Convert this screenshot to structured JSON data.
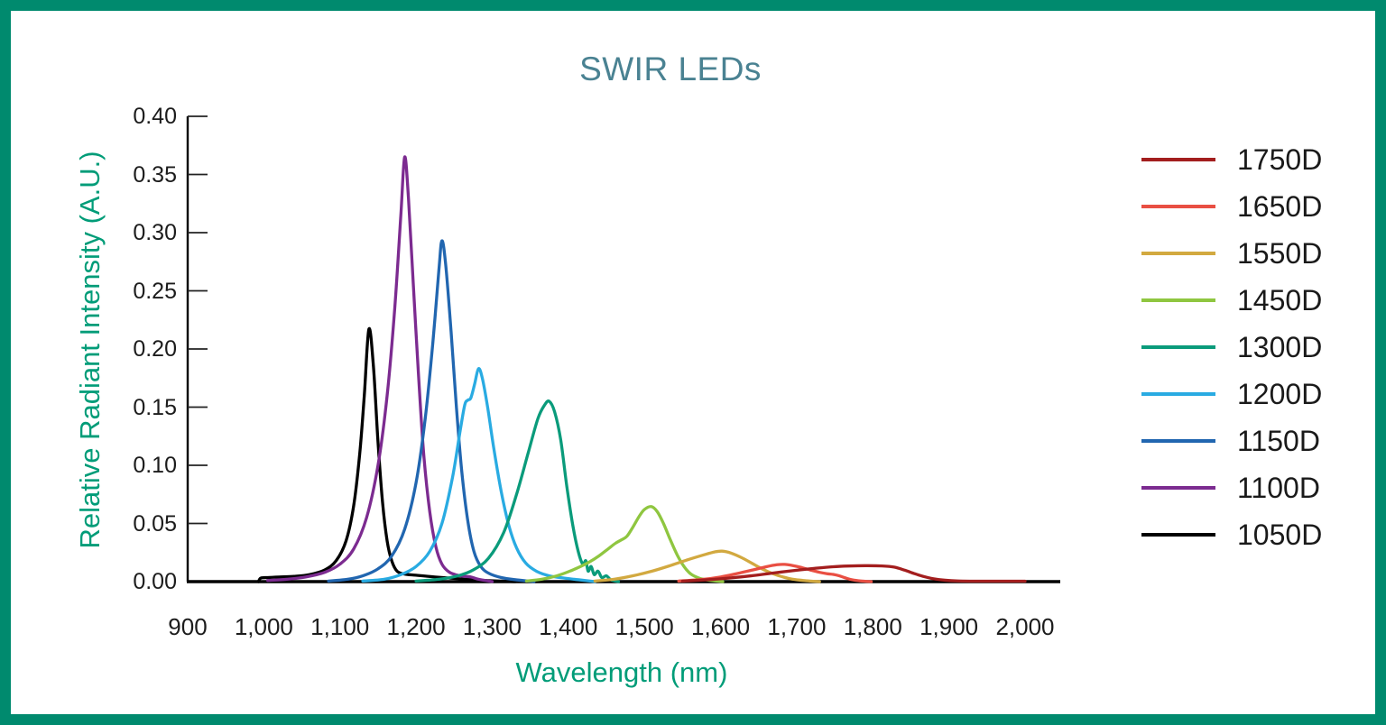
{
  "title": "SWIR LEDs",
  "palette": {
    "frame_border": "#008A6E",
    "title_color": "#4A8292",
    "axis_label_color": "#009C78",
    "axis_line_color": "#000000",
    "tick_label_color": "#1C1C1C"
  },
  "x_axis": {
    "label": "Wavelength (nm)",
    "min": 900,
    "max": 2000,
    "tick_step": 100,
    "tick_labels": [
      "900",
      "1,000",
      "1,100",
      "1,200",
      "1,300",
      "1,400",
      "1,500",
      "1,600",
      "1,700",
      "1,800",
      "1,900",
      "2,000"
    ]
  },
  "y_axis": {
    "label": "Relative Radiant Intensity (A.U.)",
    "min": 0,
    "max": 0.4,
    "tick_step": 0.05,
    "tick_labels": [
      "0.00",
      "0.05",
      "0.10",
      "0.15",
      "0.20",
      "0.25",
      "0.30",
      "0.35",
      "0.40"
    ]
  },
  "chart_data": {
    "type": "line",
    "title": "SWIR LEDs",
    "xlabel": "Wavelength (nm)",
    "ylabel": "Relative Radiant Intensity (A.U.)",
    "xlim": [
      900,
      2000
    ],
    "ylim": [
      0,
      0.4
    ],
    "grid": false,
    "legend_position": "right",
    "series": [
      {
        "name": "1750D",
        "color": "#A31E1E",
        "peak_nm": 1790,
        "peak_value": 0.0137,
        "points": [
          [
            1550,
            0.0004
          ],
          [
            1580,
            0.0015
          ],
          [
            1610,
            0.003
          ],
          [
            1640,
            0.005
          ],
          [
            1670,
            0.0075
          ],
          [
            1700,
            0.0098
          ],
          [
            1725,
            0.0115
          ],
          [
            1748,
            0.0128
          ],
          [
            1768,
            0.0134
          ],
          [
            1790,
            0.0137
          ],
          [
            1812,
            0.0135
          ],
          [
            1828,
            0.0125
          ],
          [
            1842,
            0.0098
          ],
          [
            1855,
            0.0068
          ],
          [
            1868,
            0.0042
          ],
          [
            1880,
            0.0024
          ],
          [
            1895,
            0.0012
          ],
          [
            1912,
            0.0006
          ],
          [
            1940,
            0.0004
          ],
          [
            2000,
            0.0004
          ]
        ]
      },
      {
        "name": "1650D",
        "color": "#E94F43",
        "peak_nm": 1684,
        "peak_value": 0.0148,
        "points": [
          [
            1545,
            0.0005
          ],
          [
            1575,
            0.0018
          ],
          [
            1600,
            0.004
          ],
          [
            1622,
            0.007
          ],
          [
            1642,
            0.01
          ],
          [
            1660,
            0.0128
          ],
          [
            1674,
            0.0145
          ],
          [
            1684,
            0.0148
          ],
          [
            1695,
            0.0138
          ],
          [
            1706,
            0.0122
          ],
          [
            1718,
            0.01
          ],
          [
            1730,
            0.008
          ],
          [
            1740,
            0.0068
          ],
          [
            1748,
            0.0062
          ],
          [
            1756,
            0.005
          ],
          [
            1764,
            0.0032
          ],
          [
            1773,
            0.0016
          ],
          [
            1784,
            0.0006
          ],
          [
            1798,
            0
          ]
        ]
      },
      {
        "name": "1550D",
        "color": "#D2A940",
        "peak_nm": 1602,
        "peak_value": 0.0262,
        "points": [
          [
            1435,
            0.0005
          ],
          [
            1460,
            0.002
          ],
          [
            1485,
            0.005
          ],
          [
            1510,
            0.009
          ],
          [
            1535,
            0.014
          ],
          [
            1558,
            0.019
          ],
          [
            1578,
            0.023
          ],
          [
            1592,
            0.0255
          ],
          [
            1602,
            0.0262
          ],
          [
            1614,
            0.0245
          ],
          [
            1628,
            0.0205
          ],
          [
            1642,
            0.0155
          ],
          [
            1656,
            0.0105
          ],
          [
            1670,
            0.0065
          ],
          [
            1682,
            0.004
          ],
          [
            1695,
            0.002
          ],
          [
            1712,
            0.0008
          ],
          [
            1730,
            0
          ]
        ]
      },
      {
        "name": "1450D",
        "color": "#8FC640",
        "peak_nm": 1509,
        "peak_value": 0.0645,
        "points": [
          [
            1345,
            0.0005
          ],
          [
            1365,
            0.002
          ],
          [
            1385,
            0.005
          ],
          [
            1402,
            0.009
          ],
          [
            1416,
            0.013
          ],
          [
            1428,
            0.017
          ],
          [
            1440,
            0.022
          ],
          [
            1452,
            0.028
          ],
          [
            1462,
            0.033
          ],
          [
            1470,
            0.036
          ],
          [
            1477,
            0.039
          ],
          [
            1485,
            0.047
          ],
          [
            1493,
            0.056
          ],
          [
            1500,
            0.062
          ],
          [
            1509,
            0.0645
          ],
          [
            1517,
            0.06
          ],
          [
            1525,
            0.05
          ],
          [
            1534,
            0.036
          ],
          [
            1543,
            0.023
          ],
          [
            1552,
            0.013
          ],
          [
            1561,
            0.0065
          ],
          [
            1572,
            0.003
          ],
          [
            1585,
            0.0012
          ],
          [
            1603,
            0
          ]
        ]
      },
      {
        "name": "1300D",
        "color": "#0A9B7B",
        "peak_nm": 1375,
        "peak_value": 0.155,
        "points": [
          [
            1200,
            0.0005
          ],
          [
            1230,
            0.002
          ],
          [
            1255,
            0.005
          ],
          [
            1275,
            0.01
          ],
          [
            1295,
            0.02
          ],
          [
            1315,
            0.042
          ],
          [
            1332,
            0.075
          ],
          [
            1347,
            0.11
          ],
          [
            1360,
            0.14
          ],
          [
            1369,
            0.152
          ],
          [
            1375,
            0.155
          ],
          [
            1382,
            0.146
          ],
          [
            1390,
            0.122
          ],
          [
            1398,
            0.082
          ],
          [
            1406,
            0.048
          ],
          [
            1413,
            0.026
          ],
          [
            1419,
            0.015
          ],
          [
            1423,
            0.018
          ],
          [
            1426,
            0.009
          ],
          [
            1430,
            0.013
          ],
          [
            1434,
            0.006
          ],
          [
            1439,
            0.009
          ],
          [
            1444,
            0.0035
          ],
          [
            1450,
            0.005
          ],
          [
            1456,
            0.0015
          ],
          [
            1466,
            0
          ]
        ]
      },
      {
        "name": "1200D",
        "color": "#29ABE2",
        "peak_nm": 1282,
        "peak_value": 0.183,
        "points": [
          [
            1130,
            0.0005
          ],
          [
            1158,
            0.002
          ],
          [
            1180,
            0.006
          ],
          [
            1200,
            0.013
          ],
          [
            1218,
            0.026
          ],
          [
            1234,
            0.05
          ],
          [
            1248,
            0.09
          ],
          [
            1258,
            0.13
          ],
          [
            1264,
            0.152
          ],
          [
            1268,
            0.156
          ],
          [
            1272,
            0.158
          ],
          [
            1277,
            0.17
          ],
          [
            1282,
            0.183
          ],
          [
            1287,
            0.175
          ],
          [
            1294,
            0.15
          ],
          [
            1302,
            0.115
          ],
          [
            1312,
            0.077
          ],
          [
            1322,
            0.048
          ],
          [
            1332,
            0.029
          ],
          [
            1344,
            0.016
          ],
          [
            1358,
            0.009
          ],
          [
            1375,
            0.005
          ],
          [
            1395,
            0.003
          ],
          [
            1415,
            0.0015
          ],
          [
            1435,
            0
          ]
        ]
      },
      {
        "name": "1150D",
        "color": "#2166B0",
        "peak_nm": 1234,
        "peak_value": 0.293,
        "points": [
          [
            1085,
            0.0005
          ],
          [
            1110,
            0.002
          ],
          [
            1130,
            0.005
          ],
          [
            1150,
            0.011
          ],
          [
            1168,
            0.022
          ],
          [
            1185,
            0.045
          ],
          [
            1200,
            0.085
          ],
          [
            1212,
            0.14
          ],
          [
            1222,
            0.205
          ],
          [
            1230,
            0.268
          ],
          [
            1234,
            0.293
          ],
          [
            1239,
            0.272
          ],
          [
            1246,
            0.215
          ],
          [
            1253,
            0.15
          ],
          [
            1260,
            0.095
          ],
          [
            1268,
            0.052
          ],
          [
            1276,
            0.026
          ],
          [
            1285,
            0.013
          ],
          [
            1296,
            0.007
          ],
          [
            1312,
            0.0035
          ],
          [
            1332,
            0.0015
          ],
          [
            1355,
            0
          ]
        ]
      },
      {
        "name": "1100D",
        "color": "#7C2B90",
        "peak_nm": 1185,
        "peak_value": 0.365,
        "points": [
          [
            1005,
            0.001
          ],
          [
            1030,
            0.002
          ],
          [
            1055,
            0.004
          ],
          [
            1080,
            0.008
          ],
          [
            1100,
            0.015
          ],
          [
            1118,
            0.028
          ],
          [
            1135,
            0.055
          ],
          [
            1150,
            0.1
          ],
          [
            1162,
            0.16
          ],
          [
            1172,
            0.235
          ],
          [
            1180,
            0.315
          ],
          [
            1185,
            0.365
          ],
          [
            1190,
            0.33
          ],
          [
            1196,
            0.26
          ],
          [
            1203,
            0.18
          ],
          [
            1210,
            0.11
          ],
          [
            1218,
            0.06
          ],
          [
            1226,
            0.03
          ],
          [
            1234,
            0.015
          ],
          [
            1244,
            0.008
          ],
          [
            1258,
            0.005
          ],
          [
            1272,
            0.004
          ],
          [
            1282,
            0.002
          ],
          [
            1300,
            0
          ]
        ]
      },
      {
        "name": "1050D",
        "color": "#000000",
        "peak_nm": 1138,
        "peak_value": 0.217,
        "points": [
          [
            993,
            0
          ],
          [
            996,
            0.003
          ],
          [
            1005,
            0.0035
          ],
          [
            1020,
            0.004
          ],
          [
            1040,
            0.0045
          ],
          [
            1060,
            0.006
          ],
          [
            1080,
            0.01
          ],
          [
            1095,
            0.018
          ],
          [
            1108,
            0.035
          ],
          [
            1118,
            0.065
          ],
          [
            1126,
            0.11
          ],
          [
            1132,
            0.16
          ],
          [
            1138,
            0.217
          ],
          [
            1144,
            0.185
          ],
          [
            1150,
            0.12
          ],
          [
            1156,
            0.068
          ],
          [
            1162,
            0.035
          ],
          [
            1168,
            0.018
          ],
          [
            1175,
            0.009
          ],
          [
            1185,
            0.0065
          ],
          [
            1200,
            0.0055
          ],
          [
            1225,
            0.004
          ],
          [
            1255,
            0.0025
          ],
          [
            1290,
            0.001
          ],
          [
            1330,
            0
          ]
        ]
      }
    ]
  }
}
